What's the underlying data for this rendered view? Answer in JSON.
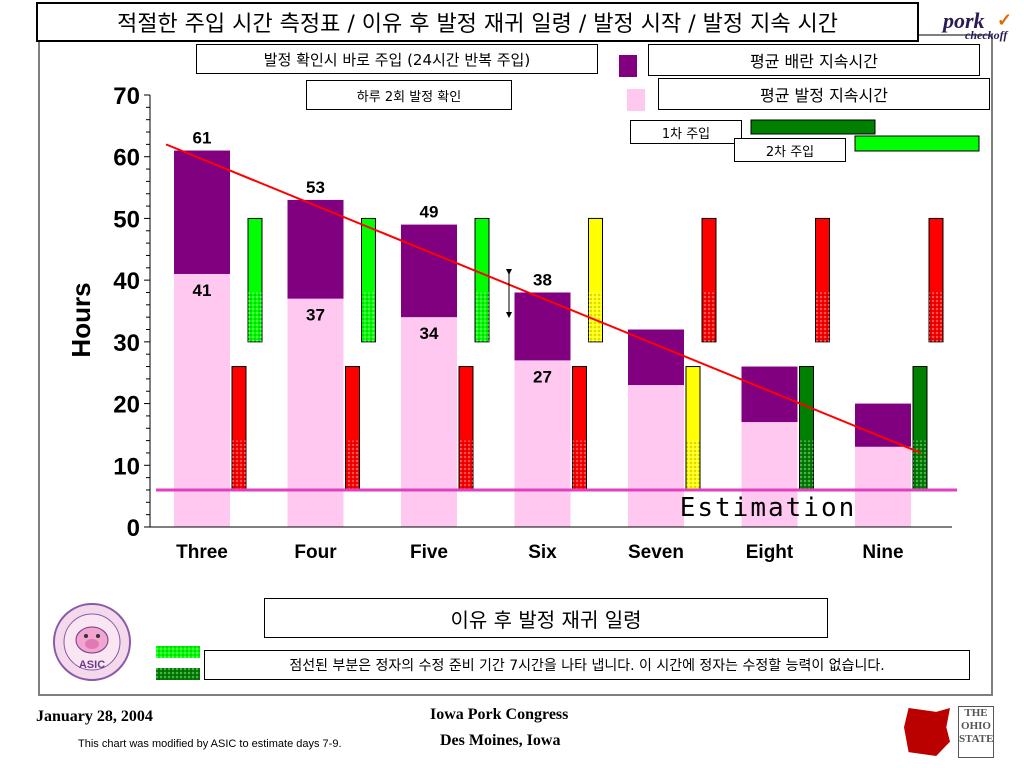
{
  "page": {
    "title": "적절한 주입 시간 측정표 / 이유 후 발정 재귀 일령 / 발정 시작 / 발정 지속 시간",
    "brand_logo": "pork checkoff",
    "footer_date": "January 28, 2004",
    "footer_note": "This chart was modified by ASIC to estimate days 7-9.",
    "footer_center_line1": "Iowa Pork Congress",
    "footer_center_line2": "Des Moines, Iowa",
    "osu_logo": "THE OHIO STATE UNIVERSITY EXTENSION",
    "asic_logo": "ASIC"
  },
  "annotations": {
    "insemination_box": "발정 확인시 바로 주입 (24시간 반복 주입)",
    "twice_daily_box": "하루 2회 발정 확인",
    "first_insemination": "1차 주입",
    "second_insemination": "2차 주입",
    "x_axis_title_box": "이유 후 발정 재귀 일령",
    "dotted_note": "점선된 부분은 정자의 수정 준비 기간 7시간을 나타 냅니다. 이 시간에 정자는 수정할 능력이 없습니다.",
    "estimation_label": "Estimation"
  },
  "legend": {
    "ovulation": "평균 배란 지속시간",
    "estrus": "평균 발정 지속시간"
  },
  "colors": {
    "ovulation": "#800080",
    "estrus": "#ffc8f0",
    "red_bar": "#ff0000",
    "green_bar": "#00ff00",
    "dark_green_bar": "#008000",
    "yellow_bar": "#ffff00",
    "trend_line": "#ff0000",
    "estimation_line": "#e040c0"
  },
  "chart_data": {
    "type": "bar",
    "ylabel": "Hours",
    "ylim": [
      0,
      70
    ],
    "yticks": [
      "0",
      "10",
      "20",
      "30",
      "40",
      "50",
      "60",
      "70"
    ],
    "categories": [
      "Three",
      "Four",
      "Five",
      "Six",
      "Seven",
      "Eight",
      "Nine"
    ],
    "series": [
      {
        "name": "평균 발정 지속시간",
        "values": [
          41,
          37,
          34,
          27,
          23,
          17,
          13
        ]
      },
      {
        "name": "평균 배란 지속시간",
        "values": [
          61,
          53,
          49,
          38,
          32,
          26,
          20
        ]
      }
    ],
    "bar_labels": {
      "total": [
        "61",
        "53",
        "49",
        "38",
        "",
        "",
        ""
      ],
      "lower": [
        "41",
        "37",
        "34",
        "27",
        "",
        "",
        ""
      ]
    },
    "insemination_windows": [
      {
        "first": [
          6,
          26
        ],
        "first_color": "red",
        "second": [
          30,
          50
        ],
        "second_color": "green"
      },
      {
        "first": [
          6,
          26
        ],
        "first_color": "red",
        "second": [
          30,
          50
        ],
        "second_color": "green"
      },
      {
        "first": [
          6,
          26
        ],
        "first_color": "red",
        "second": [
          30,
          50
        ],
        "second_color": "green"
      },
      {
        "first": [
          6,
          26
        ],
        "first_color": "red",
        "second": [
          30,
          50
        ],
        "second_color": "yellow"
      },
      {
        "first": [
          6,
          26
        ],
        "first_color": "yellow",
        "second": [
          30,
          50
        ],
        "second_color": "red"
      },
      {
        "first": [
          6,
          26
        ],
        "first_color": "darkgreen",
        "second": [
          30,
          50
        ],
        "second_color": "red"
      },
      {
        "first": [
          6,
          26
        ],
        "first_color": "darkgreen",
        "second": [
          30,
          50
        ],
        "second_color": "red"
      }
    ],
    "trend_line": {
      "start": 62,
      "end": 12
    },
    "estimation_level": 6,
    "grid": false
  }
}
